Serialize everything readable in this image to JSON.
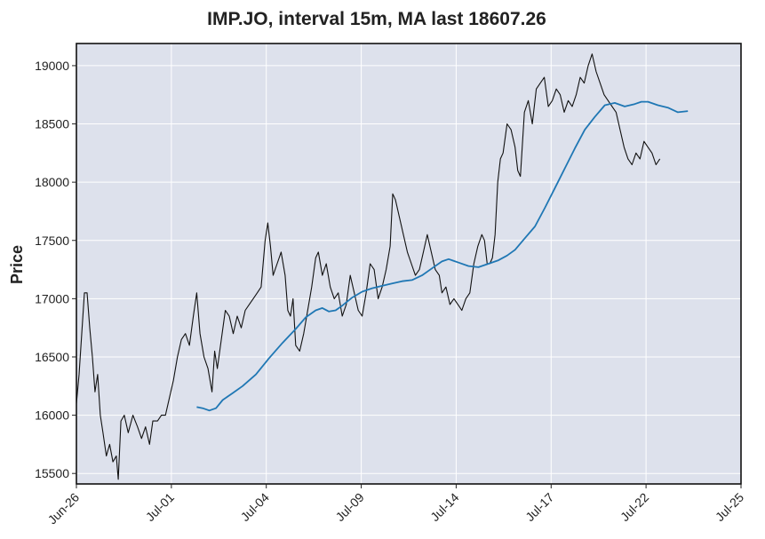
{
  "chart_data": {
    "type": "candlestick-line",
    "title": "IMP.JO, interval 15m, MA last 18607.26",
    "ylabel": "Price",
    "xlabel": "",
    "ylim": [
      15410,
      19190
    ],
    "yticks": [
      15500,
      16000,
      16500,
      17000,
      17500,
      18000,
      18500,
      19000
    ],
    "grid": true,
    "x_ticks": [
      {
        "label": "Jun-26",
        "pos": 0.0
      },
      {
        "label": "Jul-01",
        "pos": 0.1429
      },
      {
        "label": "Jul-04",
        "pos": 0.2857
      },
      {
        "label": "Jul-09",
        "pos": 0.4286
      },
      {
        "label": "Jul-14",
        "pos": 0.5714
      },
      {
        "label": "Jul-17",
        "pos": 0.7143
      },
      {
        "label": "Jul-22",
        "pos": 0.8571
      },
      {
        "label": "Jul-25",
        "pos": 1.0
      }
    ],
    "price_series": {
      "name": "IMP.JO",
      "color": "#111111",
      "points": [
        [
          0.0,
          16100
        ],
        [
          0.004,
          16350
        ],
        [
          0.008,
          16700
        ],
        [
          0.012,
          17050
        ],
        [
          0.016,
          17050
        ],
        [
          0.02,
          16750
        ],
        [
          0.024,
          16500
        ],
        [
          0.028,
          16200
        ],
        [
          0.032,
          16350
        ],
        [
          0.036,
          16000
        ],
        [
          0.04,
          15850
        ],
        [
          0.045,
          15650
        ],
        [
          0.05,
          15750
        ],
        [
          0.055,
          15600
        ],
        [
          0.06,
          15650
        ],
        [
          0.063,
          15450
        ],
        [
          0.067,
          15950
        ],
        [
          0.072,
          16000
        ],
        [
          0.078,
          15850
        ],
        [
          0.085,
          16000
        ],
        [
          0.092,
          15900
        ],
        [
          0.098,
          15800
        ],
        [
          0.104,
          15900
        ],
        [
          0.11,
          15750
        ],
        [
          0.115,
          15950
        ],
        [
          0.122,
          15950
        ],
        [
          0.128,
          16000
        ],
        [
          0.134,
          16000
        ],
        [
          0.14,
          16150
        ],
        [
          0.146,
          16300
        ],
        [
          0.152,
          16500
        ],
        [
          0.158,
          16650
        ],
        [
          0.164,
          16700
        ],
        [
          0.17,
          16600
        ],
        [
          0.176,
          16850
        ],
        [
          0.181,
          17050
        ],
        [
          0.186,
          16700
        ],
        [
          0.192,
          16500
        ],
        [
          0.198,
          16400
        ],
        [
          0.204,
          16200
        ],
        [
          0.208,
          16550
        ],
        [
          0.212,
          16400
        ],
        [
          0.218,
          16650
        ],
        [
          0.224,
          16900
        ],
        [
          0.23,
          16850
        ],
        [
          0.236,
          16700
        ],
        [
          0.242,
          16850
        ],
        [
          0.248,
          16750
        ],
        [
          0.254,
          16900
        ],
        [
          0.26,
          16950
        ],
        [
          0.266,
          17000
        ],
        [
          0.272,
          17050
        ],
        [
          0.278,
          17100
        ],
        [
          0.284,
          17500
        ],
        [
          0.288,
          17650
        ],
        [
          0.292,
          17450
        ],
        [
          0.296,
          17200
        ],
        [
          0.302,
          17300
        ],
        [
          0.308,
          17400
        ],
        [
          0.314,
          17200
        ],
        [
          0.318,
          16900
        ],
        [
          0.322,
          16850
        ],
        [
          0.326,
          17000
        ],
        [
          0.33,
          16600
        ],
        [
          0.336,
          16550
        ],
        [
          0.342,
          16700
        ],
        [
          0.348,
          16900
        ],
        [
          0.354,
          17100
        ],
        [
          0.36,
          17350
        ],
        [
          0.364,
          17400
        ],
        [
          0.37,
          17200
        ],
        [
          0.376,
          17300
        ],
        [
          0.382,
          17100
        ],
        [
          0.388,
          17000
        ],
        [
          0.394,
          17050
        ],
        [
          0.4,
          16850
        ],
        [
          0.406,
          16950
        ],
        [
          0.412,
          17200
        ],
        [
          0.418,
          17050
        ],
        [
          0.424,
          16900
        ],
        [
          0.43,
          16850
        ],
        [
          0.436,
          17050
        ],
        [
          0.442,
          17300
        ],
        [
          0.448,
          17250
        ],
        [
          0.454,
          17000
        ],
        [
          0.46,
          17100
        ],
        [
          0.466,
          17250
        ],
        [
          0.472,
          17450
        ],
        [
          0.476,
          17900
        ],
        [
          0.48,
          17850
        ],
        [
          0.486,
          17700
        ],
        [
          0.492,
          17550
        ],
        [
          0.498,
          17400
        ],
        [
          0.504,
          17300
        ],
        [
          0.51,
          17200
        ],
        [
          0.516,
          17250
        ],
        [
          0.522,
          17400
        ],
        [
          0.528,
          17550
        ],
        [
          0.534,
          17400
        ],
        [
          0.54,
          17250
        ],
        [
          0.546,
          17200
        ],
        [
          0.55,
          17050
        ],
        [
          0.556,
          17100
        ],
        [
          0.562,
          16950
        ],
        [
          0.568,
          17000
        ],
        [
          0.574,
          16950
        ],
        [
          0.58,
          16900
        ],
        [
          0.586,
          17000
        ],
        [
          0.592,
          17050
        ],
        [
          0.598,
          17300
        ],
        [
          0.604,
          17450
        ],
        [
          0.61,
          17550
        ],
        [
          0.614,
          17500
        ],
        [
          0.618,
          17300
        ],
        [
          0.622,
          17300
        ],
        [
          0.626,
          17350
        ],
        [
          0.63,
          17550
        ],
        [
          0.634,
          18000
        ],
        [
          0.638,
          18200
        ],
        [
          0.642,
          18250
        ],
        [
          0.648,
          18500
        ],
        [
          0.654,
          18450
        ],
        [
          0.66,
          18300
        ],
        [
          0.664,
          18100
        ],
        [
          0.668,
          18050
        ],
        [
          0.674,
          18600
        ],
        [
          0.68,
          18700
        ],
        [
          0.686,
          18500
        ],
        [
          0.692,
          18800
        ],
        [
          0.698,
          18850
        ],
        [
          0.704,
          18900
        ],
        [
          0.71,
          18650
        ],
        [
          0.716,
          18700
        ],
        [
          0.722,
          18800
        ],
        [
          0.728,
          18750
        ],
        [
          0.734,
          18600
        ],
        [
          0.74,
          18700
        ],
        [
          0.746,
          18650
        ],
        [
          0.752,
          18750
        ],
        [
          0.758,
          18900
        ],
        [
          0.764,
          18850
        ],
        [
          0.77,
          19000
        ],
        [
          0.776,
          19100
        ],
        [
          0.782,
          18950
        ],
        [
          0.788,
          18850
        ],
        [
          0.794,
          18750
        ],
        [
          0.8,
          18700
        ],
        [
          0.806,
          18650
        ],
        [
          0.812,
          18600
        ],
        [
          0.818,
          18450
        ],
        [
          0.824,
          18300
        ],
        [
          0.83,
          18200
        ],
        [
          0.836,
          18150
        ],
        [
          0.842,
          18250
        ],
        [
          0.848,
          18200
        ],
        [
          0.854,
          18350
        ],
        [
          0.86,
          18300
        ],
        [
          0.866,
          18250
        ],
        [
          0.872,
          18150
        ],
        [
          0.878,
          18200
        ]
      ]
    },
    "ma_series": {
      "name": "MA",
      "color": "#1f77b4",
      "points": [
        [
          0.181,
          16070
        ],
        [
          0.19,
          16060
        ],
        [
          0.2,
          16040
        ],
        [
          0.21,
          16060
        ],
        [
          0.22,
          16130
        ],
        [
          0.235,
          16190
        ],
        [
          0.25,
          16250
        ],
        [
          0.27,
          16350
        ],
        [
          0.29,
          16490
        ],
        [
          0.31,
          16620
        ],
        [
          0.33,
          16740
        ],
        [
          0.345,
          16840
        ],
        [
          0.36,
          16900
        ],
        [
          0.37,
          16920
        ],
        [
          0.38,
          16890
        ],
        [
          0.39,
          16900
        ],
        [
          0.4,
          16940
        ],
        [
          0.415,
          17010
        ],
        [
          0.43,
          17060
        ],
        [
          0.445,
          17090
        ],
        [
          0.46,
          17110
        ],
        [
          0.475,
          17130
        ],
        [
          0.49,
          17150
        ],
        [
          0.505,
          17160
        ],
        [
          0.52,
          17200
        ],
        [
          0.535,
          17260
        ],
        [
          0.55,
          17320
        ],
        [
          0.56,
          17340
        ],
        [
          0.575,
          17310
        ],
        [
          0.59,
          17280
        ],
        [
          0.605,
          17270
        ],
        [
          0.62,
          17300
        ],
        [
          0.635,
          17330
        ],
        [
          0.648,
          17370
        ],
        [
          0.66,
          17420
        ],
        [
          0.675,
          17520
        ],
        [
          0.69,
          17620
        ],
        [
          0.705,
          17780
        ],
        [
          0.72,
          17950
        ],
        [
          0.735,
          18120
        ],
        [
          0.75,
          18290
        ],
        [
          0.765,
          18450
        ],
        [
          0.78,
          18560
        ],
        [
          0.795,
          18660
        ],
        [
          0.81,
          18680
        ],
        [
          0.825,
          18650
        ],
        [
          0.84,
          18670
        ],
        [
          0.85,
          18690
        ],
        [
          0.86,
          18690
        ],
        [
          0.875,
          18660
        ],
        [
          0.89,
          18640
        ],
        [
          0.905,
          18600
        ],
        [
          0.92,
          18610
        ]
      ]
    }
  }
}
